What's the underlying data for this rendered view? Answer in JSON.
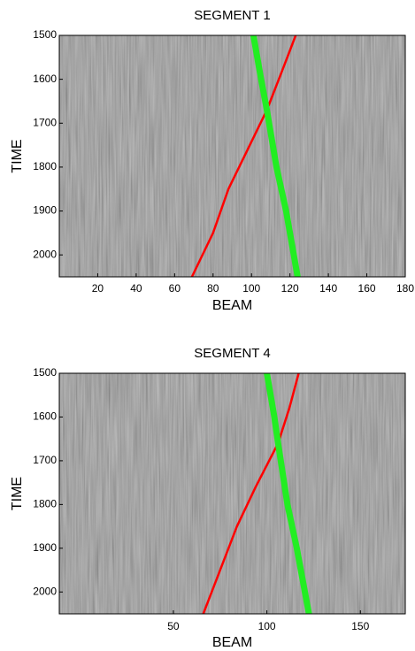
{
  "chart_data": [
    {
      "type": "line",
      "title": "SEGMENT 1",
      "x_label": "BEAM",
      "y_label": "TIME",
      "xlim": [
        0,
        180
      ],
      "xticks": [
        20,
        40,
        60,
        80,
        100,
        120,
        140,
        160,
        180
      ],
      "ylim": [
        1500,
        2050
      ],
      "yticks": [
        1500,
        1600,
        1700,
        1800,
        1900,
        2000
      ],
      "y_inverted": true,
      "series": [
        {
          "color": "#ff0000",
          "line_width": 2.5,
          "x": [
            69,
            80,
            88,
            98,
            108,
            116,
            123
          ],
          "values": [
            2050,
            1950,
            1850,
            1760,
            1670,
            1580,
            1500
          ]
        },
        {
          "color": "#22ee22",
          "line_width": 7,
          "x": [
            101,
            105,
            108,
            113,
            118,
            124
          ],
          "values": [
            1500,
            1600,
            1670,
            1800,
            1900,
            2050
          ]
        }
      ]
    },
    {
      "type": "line",
      "title": "SEGMENT 4",
      "x_label": "BEAM",
      "y_label": "TIME",
      "xlim": [
        -11,
        174
      ],
      "xticks": [
        50,
        100,
        150
      ],
      "ylim": [
        1500,
        2050
      ],
      "yticks": [
        1500,
        1600,
        1700,
        1800,
        1900,
        2000
      ],
      "y_inverted": true,
      "series": [
        {
          "color": "#ff0000",
          "line_width": 2.5,
          "x": [
            66,
            75,
            84,
            94,
            106,
            112,
            117
          ],
          "values": [
            2050,
            1950,
            1850,
            1760,
            1660,
            1580,
            1500
          ]
        },
        {
          "color": "#22ee22",
          "line_width": 7,
          "x": [
            100,
            104,
            106,
            111,
            116,
            122.5
          ],
          "values": [
            1500,
            1600,
            1660,
            1800,
            1900,
            2050
          ]
        }
      ]
    }
  ]
}
